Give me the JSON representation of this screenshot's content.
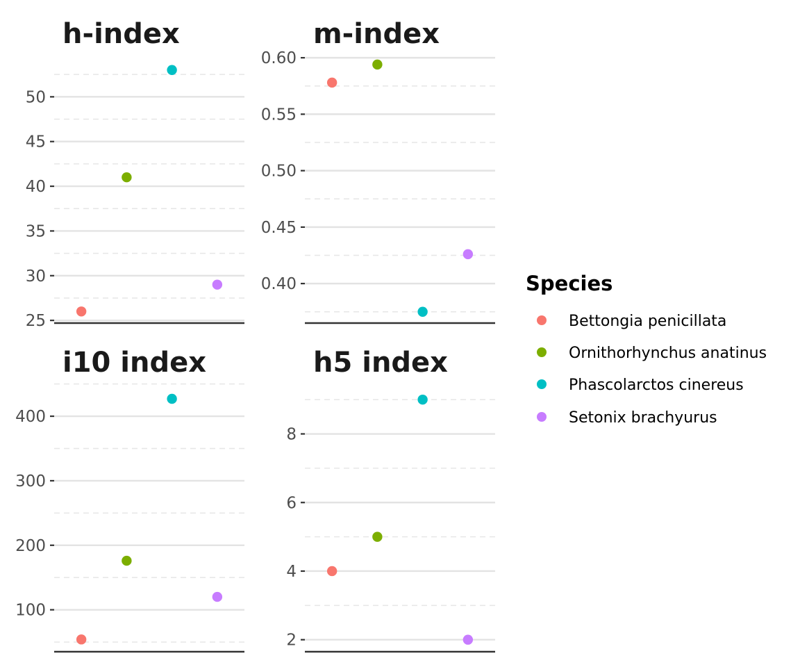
{
  "chart_data": [
    {
      "type": "scatter",
      "title": "h-index",
      "categories": [
        "Bettongia penicillata",
        "Ornithorhynchus anatinus",
        "Phascolarctos cinereus",
        "Setonix brachyurus"
      ],
      "values": [
        26,
        41,
        53,
        29
      ],
      "ylim": [
        24.7,
        55.0
      ],
      "yticks": [
        25,
        30,
        35,
        40,
        45,
        50
      ],
      "ytick_labels": [
        "25",
        "30",
        "35",
        "40",
        "45",
        "50"
      ],
      "grid": true
    },
    {
      "type": "scatter",
      "title": "m-index",
      "categories": [
        "Bettongia penicillata",
        "Ornithorhynchus anatinus",
        "Phascolarctos cinereus",
        "Setonix brachyurus"
      ],
      "values": [
        0.578,
        0.594,
        0.375,
        0.426
      ],
      "ylim": [
        0.365,
        0.605
      ],
      "yticks": [
        0.4,
        0.45,
        0.5,
        0.55,
        0.6
      ],
      "ytick_labels": [
        "0.40",
        "0.45",
        "0.50",
        "0.55",
        "0.60"
      ],
      "grid": true
    },
    {
      "type": "scatter",
      "title": "i10 index",
      "categories": [
        "Bettongia penicillata",
        "Ornithorhynchus anatinus",
        "Phascolarctos cinereus",
        "Setonix brachyurus"
      ],
      "values": [
        54,
        176,
        427,
        120
      ],
      "ylim": [
        35,
        455
      ],
      "yticks": [
        100,
        200,
        300,
        400
      ],
      "ytick_labels": [
        "100",
        "200",
        "300",
        "400"
      ],
      "grid": true
    },
    {
      "type": "scatter",
      "title": "h5 index",
      "categories": [
        "Bettongia penicillata",
        "Ornithorhynchus anatinus",
        "Phascolarctos cinereus",
        "Setonix brachyurus"
      ],
      "values": [
        4,
        5,
        9,
        2
      ],
      "ylim": [
        1.65,
        9.55
      ],
      "yticks": [
        2,
        4,
        6,
        8
      ],
      "ytick_labels": [
        "2",
        "4",
        "6",
        "8"
      ],
      "grid": true
    }
  ],
  "legend": {
    "title": "Species",
    "placement": "right",
    "items": [
      {
        "label": "Bettongia penicillata",
        "color": "#F8766D"
      },
      {
        "label": "Ornithorhynchus anatinus",
        "color": "#7CAE00"
      },
      {
        "label": "Phascolarctos cinereus",
        "color": "#00BFC4"
      },
      {
        "label": "Setonix brachyurus",
        "color": "#C77CFF"
      }
    ]
  }
}
